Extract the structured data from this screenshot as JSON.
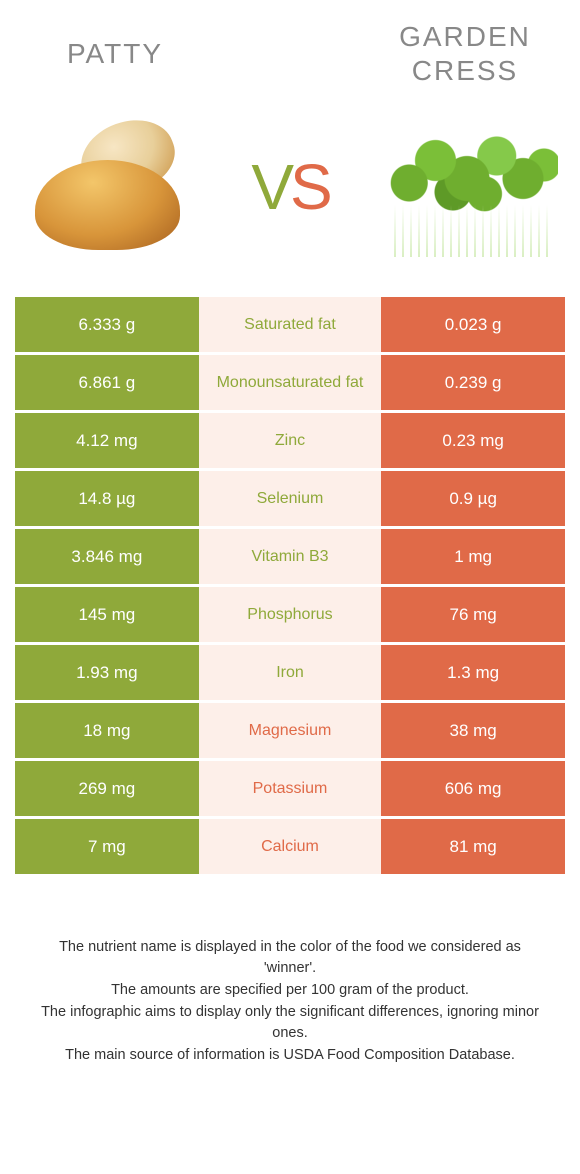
{
  "colors": {
    "left_bg": "#8fa93a",
    "right_bg": "#e06a48",
    "mid_bg": "#fdefe9",
    "title": "#888888",
    "cell_text": "#ffffff"
  },
  "header": {
    "left_title": "Patty",
    "right_title": "Garden cress",
    "vs_v": "V",
    "vs_s": "S"
  },
  "rows": [
    {
      "left": "6.333 g",
      "label": "Saturated fat",
      "right": "0.023 g",
      "winner": "left"
    },
    {
      "left": "6.861 g",
      "label": "Monounsaturated fat",
      "right": "0.239 g",
      "winner": "left"
    },
    {
      "left": "4.12 mg",
      "label": "Zinc",
      "right": "0.23 mg",
      "winner": "left"
    },
    {
      "left": "14.8 µg",
      "label": "Selenium",
      "right": "0.9 µg",
      "winner": "left"
    },
    {
      "left": "3.846 mg",
      "label": "Vitamin B3",
      "right": "1 mg",
      "winner": "left"
    },
    {
      "left": "145 mg",
      "label": "Phosphorus",
      "right": "76 mg",
      "winner": "left"
    },
    {
      "left": "1.93 mg",
      "label": "Iron",
      "right": "1.3 mg",
      "winner": "left"
    },
    {
      "left": "18 mg",
      "label": "Magnesium",
      "right": "38 mg",
      "winner": "right"
    },
    {
      "left": "269 mg",
      "label": "Potassium",
      "right": "606 mg",
      "winner": "right"
    },
    {
      "left": "7 mg",
      "label": "Calcium",
      "right": "81 mg",
      "winner": "right"
    }
  ],
  "footer": {
    "l1": "The nutrient name is displayed in the color of the food we considered as 'winner'.",
    "l2": "The amounts are specified per 100 gram of the product.",
    "l3": "The infographic aims to display only the significant differences, ignoring minor ones.",
    "l4": "The main source of information is USDA Food Composition Database."
  }
}
